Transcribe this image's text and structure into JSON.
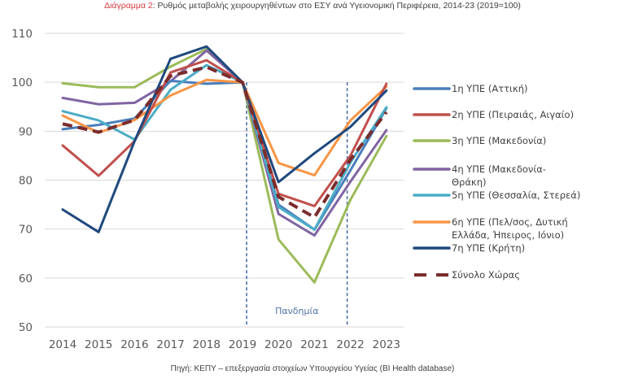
{
  "title": {
    "prefix": "Διάγραμμα 2",
    "text": ": Ρυθμός μεταβολής χειρουργηθέντων στο ΕΣΥ ανά Υγειονομική Περιφέρεια, 2014-23 (2019=100)"
  },
  "source": "Πηγή: ΚΕΠΥ – επεξεργασία στοιχείων Υπουργείου Υγείας (BI Health database)",
  "chart_data": {
    "type": "line",
    "title": "Ρυθμός μεταβολής χειρουργηθέντων στο ΕΣΥ ανά Υγειονομική Περιφέρεια, 2014-23 (2019=100)",
    "xlabel": "",
    "ylabel": "",
    "x": [
      "2014",
      "2015",
      "2016",
      "2017",
      "2018",
      "2019",
      "2020",
      "2021",
      "2022",
      "2023"
    ],
    "ylim": [
      50,
      110
    ],
    "yticks": [
      50,
      60,
      70,
      80,
      90,
      100,
      110
    ],
    "grid": true,
    "legend_position": "right",
    "annotations": [
      {
        "type": "vline",
        "x": "2019",
        "style": "dashed"
      },
      {
        "type": "vline",
        "x": "2022",
        "style": "dashed"
      },
      {
        "type": "text",
        "text": "Πανδημία",
        "between": [
          "2019",
          "2022"
        ]
      }
    ],
    "series": [
      {
        "name": "1η ΥΠΕ (Αττική)",
        "color": "#4a7ebb",
        "dashed": false,
        "values": [
          90.4,
          91.3,
          92.6,
          100.3,
          99.7,
          100,
          75.0,
          69.9,
          82.0,
          94.7
        ]
      },
      {
        "name": "2η ΥΠΕ (Πειραιάς, Αιγαίο)",
        "color": "#c0504d",
        "dashed": false,
        "values": [
          87.1,
          80.9,
          88.0,
          102.0,
          104.5,
          100,
          77.2,
          74.7,
          85.0,
          99.7
        ]
      },
      {
        "name": "3η ΥΠΕ (Μακεδονία)",
        "color": "#9bbb59",
        "dashed": false,
        "values": [
          99.8,
          99.0,
          99.0,
          103.2,
          106.8,
          100,
          67.9,
          59.1,
          76.0,
          89.0
        ]
      },
      {
        "name": "4η ΥΠΕ (Μακεδονία-Θράκη)",
        "color": "#8064a2",
        "dashed": false,
        "values": [
          96.8,
          95.5,
          95.8,
          100.2,
          106.5,
          100,
          73.1,
          68.7,
          79.7,
          90.2
        ]
      },
      {
        "name": "5η ΥΠΕ (Θεσσαλία, Στερεά)",
        "color": "#4bacc6",
        "dashed": false,
        "values": [
          94.1,
          92.2,
          88.3,
          98.5,
          103.5,
          100,
          74.5,
          69.9,
          83.6,
          94.9
        ]
      },
      {
        "name": "6η ΥΠΕ (Πελ/σος, Δυτική Ελλάδα, Ήπειρος, Ιόνιο)",
        "color": "#f79646",
        "dashed": false,
        "values": [
          93.2,
          89.7,
          92.3,
          97.3,
          100.5,
          100,
          83.5,
          81.0,
          92.2,
          99.1
        ]
      },
      {
        "name": "7η ΥΠΕ (Κρήτη)",
        "color": "#1f497d",
        "dashed": false,
        "values": [
          74.0,
          69.4,
          88.0,
          104.8,
          107.3,
          100,
          79.6,
          85.5,
          90.9,
          98.3
        ]
      },
      {
        "name": "Σύνολο Χώρας",
        "color": "#7b2c2c",
        "dashed": true,
        "values": [
          91.5,
          89.8,
          92.3,
          101.3,
          103.1,
          100,
          76.6,
          72.4,
          84.2,
          93.9
        ]
      }
    ],
    "legend_labels": [
      [
        "1η ΥΠΕ (Αττική)"
      ],
      [
        "2η ΥΠΕ (Πειραιάς, Αιγαίο)"
      ],
      [
        "3η ΥΠΕ (Μακεδονία)"
      ],
      [
        "4η ΥΠΕ (Μακεδονία-",
        "Θράκη)"
      ],
      [
        "5η ΥΠΕ (Θεσσαλία, Στερεά)"
      ],
      [
        "6η ΥΠΕ (Πελ/σος, Δυτική",
        "Ελλάδα, Ήπειρος, Ιόνιο)"
      ],
      [
        "7η ΥΠΕ (Κρήτη)"
      ],
      [
        "Σύνολο Χώρας"
      ]
    ]
  }
}
